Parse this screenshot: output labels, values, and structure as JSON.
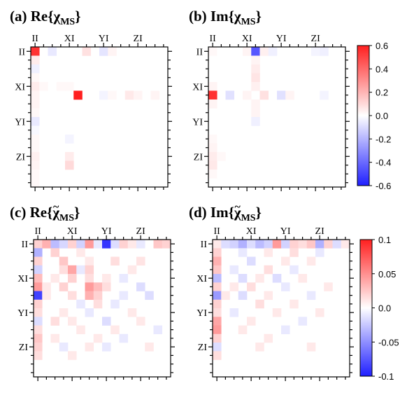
{
  "chart_data": [
    {
      "id": "a",
      "type": "heatmap",
      "panel_label": "(a)",
      "title_main": "Re{χ",
      "title_sub": "MS",
      "title_end": "}",
      "tilde": false,
      "tick_labels": [
        "II",
        "XI",
        "YI",
        "ZI"
      ],
      "grid_size": 16,
      "vmin": -0.6,
      "vmax": 0.6,
      "cells": [
        [
          0,
          0,
          0.55
        ],
        [
          0,
          2,
          -0.06
        ],
        [
          0,
          6,
          0.08
        ],
        [
          0,
          8,
          -0.07
        ],
        [
          0,
          9,
          0.03
        ],
        [
          1,
          0,
          0.05
        ],
        [
          2,
          0,
          -0.04
        ],
        [
          3,
          0,
          0.02
        ],
        [
          4,
          0,
          0.05
        ],
        [
          4,
          1,
          0.02
        ],
        [
          4,
          3,
          0.02
        ],
        [
          4,
          4,
          0.02
        ],
        [
          5,
          0,
          0.03
        ],
        [
          5,
          5,
          0.6
        ],
        [
          5,
          8,
          -0.03
        ],
        [
          5,
          9,
          0.02
        ],
        [
          5,
          11,
          0.06
        ],
        [
          5,
          12,
          0.03
        ],
        [
          5,
          14,
          0.03
        ],
        [
          6,
          0,
          0.03
        ],
        [
          7,
          0,
          0.02
        ],
        [
          8,
          0,
          -0.06
        ],
        [
          9,
          0,
          -0.02
        ],
        [
          10,
          0,
          0.02
        ],
        [
          10,
          4,
          -0.03
        ],
        [
          11,
          0,
          0.02
        ],
        [
          12,
          0,
          0.04
        ],
        [
          12,
          4,
          0.05
        ],
        [
          13,
          0,
          0.03
        ],
        [
          13,
          4,
          0.1
        ],
        [
          14,
          0,
          0.02
        ],
        [
          15,
          0,
          0.02
        ]
      ]
    },
    {
      "id": "b",
      "type": "heatmap",
      "panel_label": "(b)",
      "title_main": "Im{χ",
      "title_sub": "MS",
      "title_end": "}",
      "tilde": false,
      "tick_labels": [
        "II",
        "XI",
        "YI",
        "ZI"
      ],
      "grid_size": 16,
      "vmin": -0.6,
      "vmax": 0.6,
      "cells": [
        [
          0,
          0,
          0.02
        ],
        [
          0,
          4,
          0.03
        ],
        [
          0,
          5,
          -0.45
        ],
        [
          0,
          6,
          0.04
        ],
        [
          0,
          7,
          -0.04
        ],
        [
          0,
          12,
          -0.03
        ],
        [
          0,
          13,
          -0.04
        ],
        [
          1,
          5,
          0.03
        ],
        [
          2,
          5,
          0.05
        ],
        [
          3,
          5,
          0.07
        ],
        [
          4,
          0,
          0.03
        ],
        [
          4,
          5,
          0.04
        ],
        [
          5,
          0,
          0.55
        ],
        [
          5,
          2,
          -0.08
        ],
        [
          5,
          4,
          0.03
        ],
        [
          5,
          6,
          0.08
        ],
        [
          5,
          8,
          -0.08
        ],
        [
          5,
          9,
          0.03
        ],
        [
          5,
          13,
          -0.03
        ],
        [
          6,
          0,
          0.03
        ],
        [
          6,
          5,
          0.03
        ],
        [
          7,
          5,
          0.03
        ],
        [
          8,
          5,
          -0.04
        ],
        [
          10,
          0,
          0.02
        ],
        [
          11,
          0,
          0.03
        ],
        [
          12,
          0,
          0.05
        ],
        [
          12,
          1,
          0.02
        ],
        [
          13,
          0,
          0.06
        ],
        [
          14,
          0,
          0.02
        ]
      ]
    },
    {
      "id": "c",
      "type": "heatmap",
      "panel_label": "(c)",
      "title_main": "Re{χ",
      "title_sub": "MS",
      "title_end": "}",
      "tilde": true,
      "tick_labels": [
        "II",
        "XI",
        "YI",
        "ZI"
      ],
      "grid_size": 16,
      "vmin": -0.1,
      "vmax": 0.1,
      "cells": [
        [
          0,
          0,
          0.02
        ],
        [
          0,
          1,
          0.035
        ],
        [
          0,
          2,
          -0.03
        ],
        [
          0,
          3,
          -0.018
        ],
        [
          0,
          4,
          0.02
        ],
        [
          0,
          5,
          -0.02
        ],
        [
          0,
          6,
          0.045
        ],
        [
          0,
          7,
          -0.01
        ],
        [
          0,
          8,
          -0.09
        ],
        [
          0,
          9,
          -0.015
        ],
        [
          0,
          10,
          0.02
        ],
        [
          0,
          11,
          0.01
        ],
        [
          0,
          12,
          -0.01
        ],
        [
          0,
          14,
          0.025
        ],
        [
          0,
          15,
          0.02
        ],
        [
          1,
          0,
          -0.035
        ],
        [
          1,
          2,
          0.02
        ],
        [
          1,
          5,
          0.01
        ],
        [
          2,
          0,
          0.02
        ],
        [
          2,
          3,
          0.025
        ],
        [
          2,
          6,
          0.01
        ],
        [
          2,
          9,
          0.015
        ],
        [
          2,
          12,
          0.012
        ],
        [
          3,
          0,
          -0.02
        ],
        [
          3,
          3,
          0.015
        ],
        [
          3,
          4,
          0.04
        ],
        [
          3,
          5,
          -0.01
        ],
        [
          3,
          6,
          0.02
        ],
        [
          3,
          11,
          0.01
        ],
        [
          4,
          0,
          0.03
        ],
        [
          4,
          2,
          0.01
        ],
        [
          4,
          4,
          0.02
        ],
        [
          4,
          6,
          0.015
        ],
        [
          4,
          8,
          0.01
        ],
        [
          4,
          10,
          -0.01
        ],
        [
          5,
          0,
          0.045
        ],
        [
          5,
          1,
          0.01
        ],
        [
          5,
          3,
          0.02
        ],
        [
          5,
          6,
          0.045
        ],
        [
          5,
          7,
          0.03
        ],
        [
          5,
          8,
          0.015
        ],
        [
          5,
          12,
          -0.015
        ],
        [
          6,
          0,
          -0.085
        ],
        [
          6,
          1,
          0.01
        ],
        [
          6,
          4,
          0.015
        ],
        [
          6,
          6,
          0.035
        ],
        [
          6,
          7,
          0.02
        ],
        [
          6,
          10,
          -0.01
        ],
        [
          6,
          13,
          -0.015
        ],
        [
          7,
          0,
          0.02
        ],
        [
          7,
          5,
          -0.01
        ],
        [
          7,
          7,
          0.015
        ],
        [
          7,
          9,
          -0.01
        ],
        [
          8,
          0,
          0.015
        ],
        [
          8,
          3,
          0.01
        ],
        [
          8,
          6,
          -0.01
        ],
        [
          8,
          11,
          0.01
        ],
        [
          9,
          0,
          -0.015
        ],
        [
          9,
          2,
          0.015
        ],
        [
          9,
          4,
          0.01
        ],
        [
          9,
          8,
          -0.015
        ],
        [
          9,
          12,
          0.01
        ],
        [
          10,
          0,
          0.015
        ],
        [
          10,
          5,
          0.01
        ],
        [
          10,
          9,
          0.01
        ],
        [
          10,
          14,
          -0.01
        ],
        [
          11,
          0,
          0.025
        ],
        [
          11,
          2,
          0.01
        ],
        [
          11,
          7,
          0.01
        ],
        [
          11,
          10,
          -0.01
        ],
        [
          12,
          0,
          0.02
        ],
        [
          12,
          3,
          -0.01
        ],
        [
          12,
          6,
          0.01
        ],
        [
          12,
          8,
          -0.01
        ],
        [
          12,
          13,
          0.01
        ],
        [
          13,
          0,
          0.015
        ],
        [
          13,
          4,
          0.01
        ]
      ]
    },
    {
      "id": "d",
      "type": "heatmap",
      "panel_label": "(d)",
      "title_main": "Im{χ",
      "title_sub": "MS",
      "title_end": "}",
      "tilde": true,
      "tick_labels": [
        "II",
        "XI",
        "YI",
        "ZI"
      ],
      "grid_size": 16,
      "vmin": -0.1,
      "vmax": 0.1,
      "cells": [
        [
          0,
          0,
          0.01
        ],
        [
          0,
          1,
          -0.015
        ],
        [
          0,
          2,
          -0.02
        ],
        [
          0,
          3,
          -0.035
        ],
        [
          0,
          4,
          -0.015
        ],
        [
          0,
          5,
          -0.03
        ],
        [
          0,
          6,
          -0.02
        ],
        [
          0,
          7,
          0.045
        ],
        [
          0,
          8,
          -0.02
        ],
        [
          0,
          9,
          0.02
        ],
        [
          0,
          10,
          0.015
        ],
        [
          0,
          11,
          0.025
        ],
        [
          0,
          12,
          -0.035
        ],
        [
          0,
          13,
          0.02
        ],
        [
          0,
          14,
          -0.015
        ],
        [
          0,
          15,
          0.01
        ],
        [
          1,
          0,
          0.02
        ],
        [
          1,
          3,
          -0.01
        ],
        [
          1,
          6,
          0.01
        ],
        [
          1,
          9,
          0.015
        ],
        [
          1,
          12,
          -0.01
        ],
        [
          2,
          0,
          0.035
        ],
        [
          2,
          4,
          -0.015
        ],
        [
          2,
          8,
          0.01
        ],
        [
          2,
          11,
          0.01
        ],
        [
          3,
          0,
          0.025
        ],
        [
          3,
          2,
          -0.01
        ],
        [
          3,
          6,
          0.015
        ],
        [
          3,
          9,
          -0.01
        ],
        [
          4,
          0,
          -0.03
        ],
        [
          4,
          3,
          -0.015
        ],
        [
          4,
          5,
          0.01
        ],
        [
          4,
          7,
          -0.015
        ],
        [
          4,
          10,
          0.01
        ],
        [
          5,
          0,
          0.02
        ],
        [
          5,
          2,
          0.01
        ],
        [
          5,
          4,
          0.015
        ],
        [
          5,
          8,
          -0.01
        ],
        [
          5,
          13,
          0.01
        ],
        [
          6,
          0,
          -0.045
        ],
        [
          6,
          1,
          0.01
        ],
        [
          6,
          3,
          -0.015
        ],
        [
          6,
          6,
          0.01
        ],
        [
          6,
          11,
          -0.01
        ],
        [
          7,
          0,
          0.02
        ],
        [
          7,
          5,
          0.015
        ],
        [
          7,
          9,
          0.01
        ],
        [
          8,
          0,
          0.015
        ],
        [
          8,
          2,
          -0.01
        ],
        [
          8,
          7,
          0.01
        ],
        [
          8,
          12,
          0.01
        ],
        [
          9,
          0,
          0.04
        ],
        [
          9,
          4,
          0.01
        ],
        [
          9,
          10,
          -0.01
        ],
        [
          10,
          0,
          0.045
        ],
        [
          10,
          3,
          0.01
        ],
        [
          10,
          8,
          -0.01
        ],
        [
          11,
          0,
          0.02
        ],
        [
          11,
          6,
          0.01
        ],
        [
          12,
          0,
          -0.015
        ],
        [
          12,
          5,
          0.01
        ],
        [
          12,
          11,
          0.01
        ],
        [
          13,
          0,
          0.015
        ]
      ]
    }
  ],
  "colorbars": [
    {
      "for_panels": [
        "a",
        "b"
      ],
      "vmin": -0.6,
      "vmax": 0.6,
      "ticks": [
        "0.6",
        "0.4",
        "0.2",
        "0.0",
        "-0.2",
        "-0.4",
        "-0.6"
      ]
    },
    {
      "for_panels": [
        "c",
        "d"
      ],
      "vmin": -0.1,
      "vmax": 0.1,
      "ticks": [
        "0.1",
        "0.05",
        "0.0",
        "-0.05",
        "-0.1"
      ]
    }
  ],
  "colors": {
    "negative": "#1f1fff",
    "zero": "#ffffff",
    "positive": "#ff2020"
  }
}
